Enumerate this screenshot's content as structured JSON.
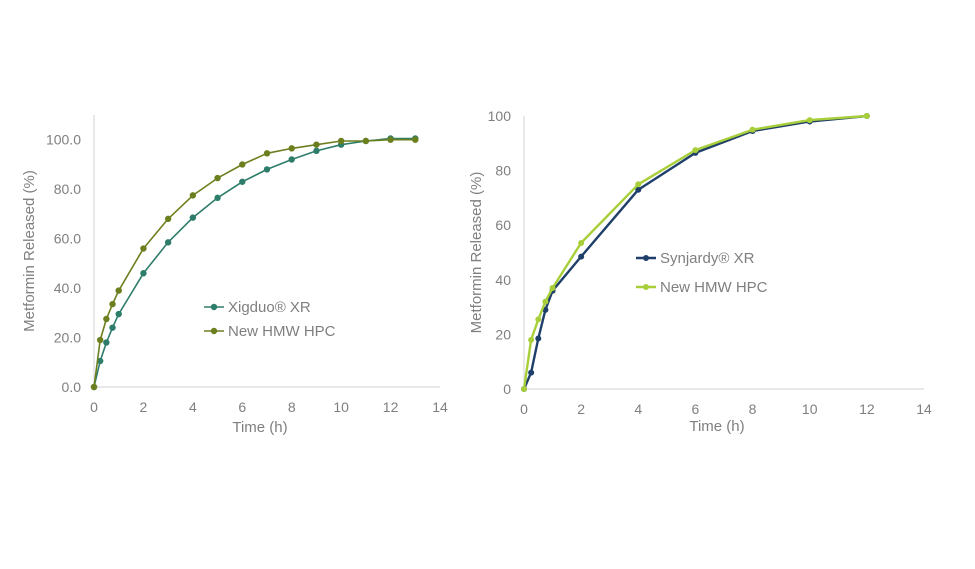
{
  "chart_data": [
    {
      "type": "line",
      "xlabel": "Time (h)",
      "ylabel": "Metformin Released (%)",
      "xlim": [
        0,
        14
      ],
      "ylim": [
        0,
        110
      ],
      "x_ticks": [
        0,
        2,
        4,
        6,
        8,
        10,
        12,
        14
      ],
      "y_ticks": [
        0,
        20,
        40,
        60,
        80,
        100
      ],
      "y_tick_decimals": 1,
      "grid": false,
      "legend_position": "center",
      "series": [
        {
          "name": "Xigduo® XR",
          "color": "#2e7d6b",
          "x": [
            0,
            0.25,
            0.5,
            0.75,
            1,
            2,
            3,
            4,
            5,
            6,
            7,
            8,
            9,
            10,
            11,
            12,
            13
          ],
          "y": [
            0,
            10.5,
            18,
            24,
            29.5,
            46,
            58.5,
            68.5,
            76.5,
            83,
            88,
            92,
            95.5,
            98,
            99.5,
            100.5,
            100.5
          ]
        },
        {
          "name": "New HMW HPC",
          "color": "#6b7f1e",
          "x": [
            0,
            0.25,
            0.5,
            0.75,
            1,
            2,
            3,
            4,
            5,
            6,
            7,
            8,
            9,
            10,
            11,
            12,
            13
          ],
          "y": [
            0,
            19,
            27.5,
            33.5,
            39,
            56,
            68,
            77.5,
            84.5,
            90,
            94.5,
            96.5,
            98,
            99.5,
            99.5,
            100,
            100
          ]
        }
      ]
    },
    {
      "type": "line",
      "xlabel": "Time (h)",
      "ylabel": "Metformin Released (%)",
      "xlim": [
        0,
        14
      ],
      "ylim": [
        0,
        100
      ],
      "x_ticks": [
        0,
        2,
        4,
        6,
        8,
        10,
        12,
        14
      ],
      "y_ticks": [
        0,
        20,
        40,
        60,
        80,
        100
      ],
      "y_tick_decimals": 0,
      "grid": false,
      "legend_position": "center-right",
      "series": [
        {
          "name": "Synjardy® XR",
          "color": "#1f3f6b",
          "x": [
            0,
            0.25,
            0.5,
            0.75,
            1,
            2,
            4,
            6,
            8,
            10,
            12
          ],
          "y": [
            0,
            6,
            18.5,
            29,
            36,
            48.5,
            73,
            86.5,
            94.5,
            98,
            100
          ]
        },
        {
          "name": "New HMW HPC",
          "color": "#a8cf3a",
          "x": [
            0,
            0.25,
            0.5,
            0.75,
            1,
            2,
            4,
            6,
            8,
            10,
            12
          ],
          "y": [
            0,
            18,
            25.5,
            32,
            37,
            53.5,
            75,
            87.5,
            95,
            98.5,
            100
          ]
        }
      ]
    }
  ]
}
